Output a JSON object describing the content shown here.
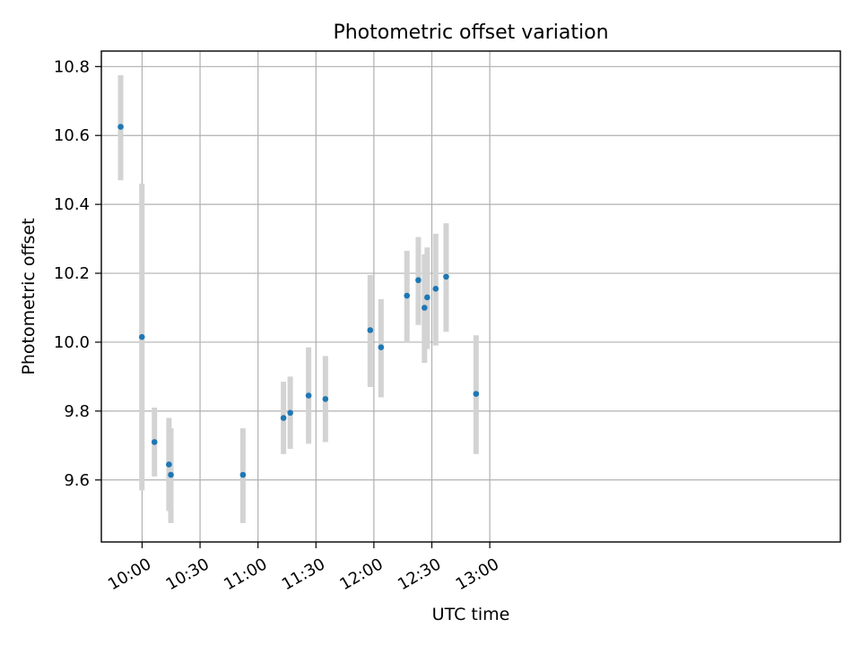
{
  "chart_data": {
    "type": "scatter",
    "title": "Photometric offset variation",
    "xlabel": "UTC time",
    "ylabel": "Photometric offset",
    "xlim_minutes": [
      578.9,
      961.5
    ],
    "ylim": [
      9.42,
      10.845
    ],
    "grid": true,
    "x_ticks": [
      {
        "minutes": 600,
        "label": "10:00"
      },
      {
        "minutes": 630,
        "label": "10:30"
      },
      {
        "minutes": 660,
        "label": "11:00"
      },
      {
        "minutes": 690,
        "label": "11:30"
      },
      {
        "minutes": 720,
        "label": "12:00"
      },
      {
        "minutes": 750,
        "label": "12:30"
      },
      {
        "minutes": 780,
        "label": "13:00"
      }
    ],
    "y_ticks": [
      {
        "value": 9.6,
        "label": "9.6"
      },
      {
        "value": 9.8,
        "label": "9.8"
      },
      {
        "value": 10.0,
        "label": "10.0"
      },
      {
        "value": 10.2,
        "label": "10.2"
      },
      {
        "value": 10.4,
        "label": "10.4"
      },
      {
        "value": 10.6,
        "label": "10.6"
      },
      {
        "value": 10.8,
        "label": "10.8"
      }
    ],
    "marker_color": "#1f77b4",
    "errorbar_color": "#d3d3d3",
    "points": [
      {
        "time": "09:48:54",
        "minutes": 588.9,
        "y": 10.625,
        "err_low": 10.47,
        "err_high": 10.775
      },
      {
        "time": "09:59:54",
        "minutes": 599.9,
        "y": 10.015,
        "err_low": 9.57,
        "err_high": 10.46
      },
      {
        "time": "10:06:24",
        "minutes": 606.4,
        "y": 9.71,
        "err_low": 9.61,
        "err_high": 9.81
      },
      {
        "time": "10:13:54",
        "minutes": 613.9,
        "y": 9.645,
        "err_low": 9.51,
        "err_high": 9.78
      },
      {
        "time": "10:14:54",
        "minutes": 614.9,
        "y": 9.615,
        "err_low": 9.475,
        "err_high": 9.75
      },
      {
        "time": "10:52:12",
        "minutes": 652.2,
        "y": 9.615,
        "err_low": 9.475,
        "err_high": 9.75
      },
      {
        "time": "11:13:12",
        "minutes": 673.2,
        "y": 9.78,
        "err_low": 9.675,
        "err_high": 9.885
      },
      {
        "time": "11:16:42",
        "minutes": 676.7,
        "y": 9.795,
        "err_low": 9.69,
        "err_high": 9.9
      },
      {
        "time": "11:26:12",
        "minutes": 686.2,
        "y": 9.845,
        "err_low": 9.705,
        "err_high": 9.985
      },
      {
        "time": "11:34:54",
        "minutes": 694.9,
        "y": 9.835,
        "err_low": 9.71,
        "err_high": 9.96
      },
      {
        "time": "11:58:06",
        "minutes": 718.1,
        "y": 10.035,
        "err_low": 9.87,
        "err_high": 10.195
      },
      {
        "time": "12:03:42",
        "minutes": 723.7,
        "y": 9.985,
        "err_low": 9.84,
        "err_high": 10.125
      },
      {
        "time": "12:17:06",
        "minutes": 737.1,
        "y": 10.135,
        "err_low": 10.0,
        "err_high": 10.265
      },
      {
        "time": "12:23:00",
        "minutes": 743.0,
        "y": 10.18,
        "err_low": 10.05,
        "err_high": 10.305
      },
      {
        "time": "12:26:12",
        "minutes": 746.2,
        "y": 10.1,
        "err_low": 9.94,
        "err_high": 10.255
      },
      {
        "time": "12:27:36",
        "minutes": 747.6,
        "y": 10.13,
        "err_low": 9.98,
        "err_high": 10.275
      },
      {
        "time": "12:32:00",
        "minutes": 752.0,
        "y": 10.155,
        "err_low": 9.99,
        "err_high": 10.315
      },
      {
        "time": "12:37:24",
        "minutes": 757.4,
        "y": 10.19,
        "err_low": 10.03,
        "err_high": 10.345
      },
      {
        "time": "12:52:54",
        "minutes": 772.9,
        "y": 9.85,
        "err_low": 9.675,
        "err_high": 10.02
      }
    ]
  }
}
